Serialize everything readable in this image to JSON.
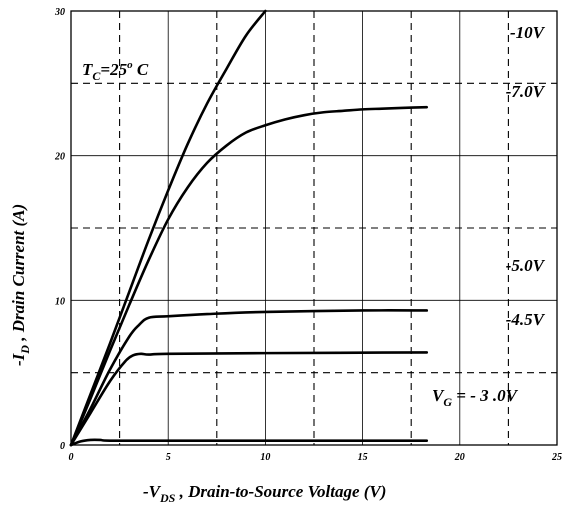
{
  "chart_data": {
    "type": "line",
    "xlim": [
      0,
      25
    ],
    "ylim": [
      0,
      30
    ],
    "x_ticks": [
      "0",
      "5",
      "10",
      "15",
      "20",
      "25"
    ],
    "y_ticks": [
      "0",
      "10",
      "20",
      "30"
    ],
    "grid": true,
    "xlabel": {
      "prefix": "-V",
      "sub": "DS",
      "suffix": " , Drain-to-Source Voltage (V)"
    },
    "ylabel": {
      "prefix": "-I",
      "sub": "D",
      "suffix": " , Drain Current (A)"
    },
    "annotations": {
      "temp": {
        "prefix": "T",
        "sub": "C",
        "mid": "=25",
        "sup": "o",
        "suffix": " C"
      },
      "vg": {
        "prefix": "V",
        "sub": "G",
        "suffix": " = - 3 .0V"
      }
    },
    "series": [
      {
        "name": "-10V",
        "x": [
          0,
          1,
          2,
          3,
          4,
          5,
          6,
          7,
          8,
          9,
          10
        ],
        "y": [
          0,
          3.5,
          7,
          10.6,
          14.2,
          17.6,
          20.8,
          23.6,
          26.0,
          28.3,
          30
        ]
      },
      {
        "name": "-7.0V",
        "x": [
          0,
          1,
          2,
          3,
          4,
          5,
          6,
          7,
          8,
          9,
          10,
          11,
          12,
          13,
          14,
          15,
          16,
          17,
          18.3
        ],
        "y": [
          0,
          3.2,
          6.5,
          9.7,
          12.8,
          15.6,
          17.8,
          19.5,
          20.7,
          21.6,
          22.1,
          22.5,
          22.8,
          23.0,
          23.1,
          23.2,
          23.25,
          23.3,
          23.35
        ]
      },
      {
        "name": "-5.0V",
        "x": [
          0,
          1,
          2,
          3,
          3.5,
          4,
          5,
          7,
          10,
          15,
          18.3
        ],
        "y": [
          0,
          2.5,
          5.2,
          7.5,
          8.3,
          8.8,
          8.9,
          9.05,
          9.2,
          9.3,
          9.3
        ]
      },
      {
        "name": "-4.5V",
        "x": [
          0,
          1,
          2,
          2.8,
          3.2,
          3.6,
          4,
          5,
          10,
          18.3
        ],
        "y": [
          0,
          2.2,
          4.4,
          5.8,
          6.2,
          6.3,
          6.25,
          6.3,
          6.35,
          6.4
        ]
      },
      {
        "name": "-3.0V",
        "x": [
          0,
          0.5,
          1,
          1.5,
          2,
          5,
          10,
          18.3
        ],
        "y": [
          0,
          0.25,
          0.35,
          0.35,
          0.3,
          0.3,
          0.3,
          0.3
        ]
      }
    ],
    "curve_labels": [
      "-10V",
      "-7.0V",
      "-5.0V",
      "-4.5V"
    ]
  }
}
